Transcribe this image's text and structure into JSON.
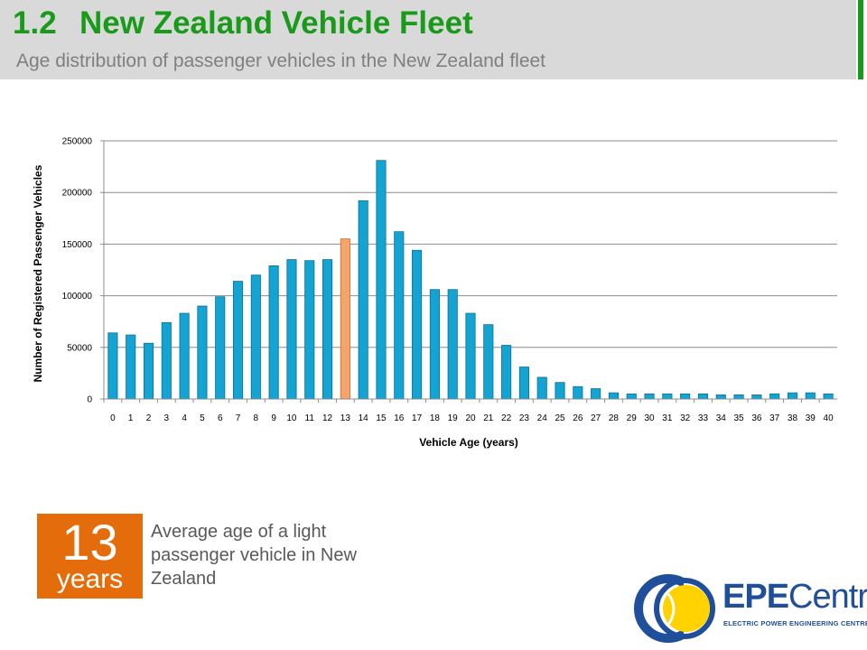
{
  "header": {
    "section_number": "1.2",
    "title": "New Zealand Vehicle Fleet",
    "subtitle": "Age distribution of passenger vehicles in the New Zealand fleet"
  },
  "colors": {
    "accent_green": "#1a9a1a",
    "bar_blue": "#13a4d3",
    "bar_highlight": "#f5a56b",
    "stat_orange": "#e46c0a",
    "logo_blue": "#1f4e9a",
    "logo_yellow": "#ffd200"
  },
  "chart_data": {
    "type": "bar",
    "xlabel": "Vehicle Age (years)",
    "ylabel": "Number of Registered Passenger Vehicles",
    "ylim": [
      0,
      250000
    ],
    "yticks": [
      0,
      50000,
      100000,
      150000,
      200000,
      250000
    ],
    "grid": true,
    "highlight_category": "13",
    "categories": [
      "0",
      "1",
      "2",
      "3",
      "4",
      "5",
      "6",
      "7",
      "8",
      "9",
      "10",
      "11",
      "12",
      "13",
      "14",
      "15",
      "16",
      "17",
      "18",
      "19",
      "20",
      "21",
      "22",
      "23",
      "24",
      "25",
      "26",
      "27",
      "28",
      "29",
      "30",
      "31",
      "32",
      "33",
      "34",
      "35",
      "36",
      "37",
      "38",
      "39",
      "40"
    ],
    "values": [
      64000,
      62000,
      54000,
      74000,
      83000,
      90000,
      99000,
      114000,
      120000,
      129000,
      135000,
      134000,
      135000,
      155000,
      192000,
      231000,
      162000,
      144000,
      106000,
      106000,
      83000,
      72000,
      52000,
      31000,
      21000,
      16000,
      12000,
      10000,
      6000,
      5000,
      5000,
      5000,
      5000,
      5000,
      4000,
      4000,
      4000,
      5000,
      6000,
      6000,
      5000
    ]
  },
  "stat": {
    "number": "13",
    "unit": "years",
    "description": "Average age of a light passenger vehicle in New Zealand"
  },
  "logo": {
    "brand_bold": "EPE",
    "brand_rest": "Centre",
    "tagline": "ELECTRIC POWER ENGINEERING CENTRE"
  }
}
